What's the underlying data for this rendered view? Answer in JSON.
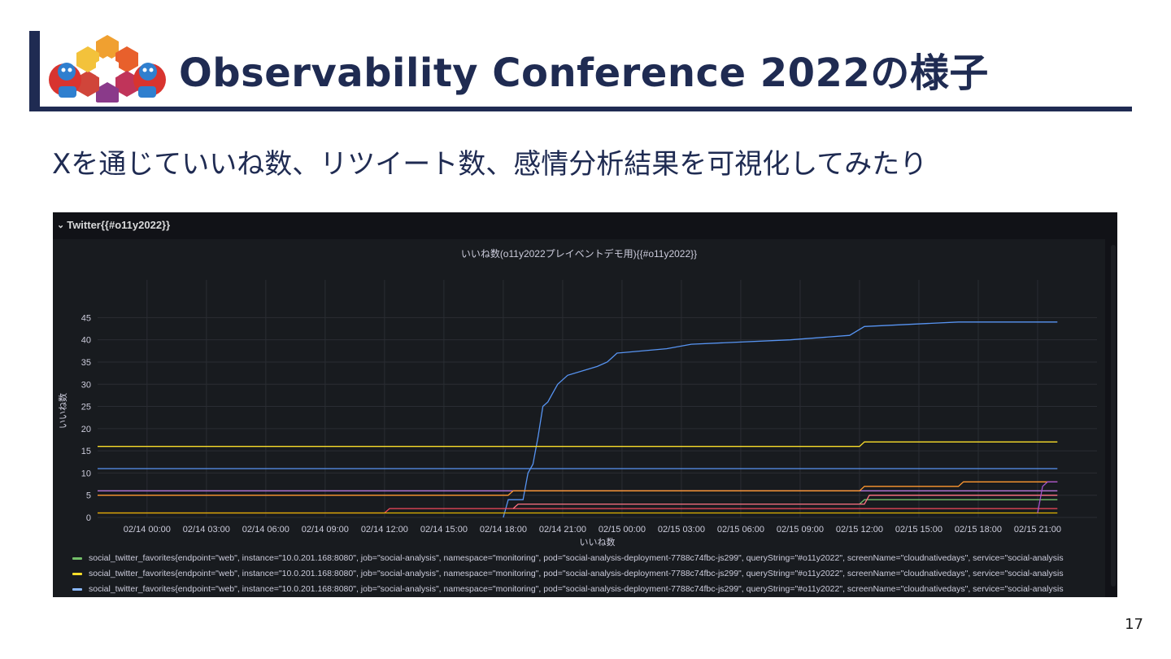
{
  "slide": {
    "title": "Observability Conference 2022の様子",
    "subtitle": "Xを通じていいね数、リツイート数、感情分析結果を可視化してみたり",
    "page_number": "17"
  },
  "dashboard": {
    "row_title": "Twitter{{#o11y2022}}",
    "panel_title": "いいね数(o11y2022プレイベントデモ用){{#o11y2022}}",
    "legend": [
      {
        "label": "social_twitter_favorites{endpoint=\"web\", instance=\"10.0.201.168:8080\", job=\"social-analysis\", namespace=\"monitoring\", pod=\"social-analysis-deployment-7788c74fbc-js299\", queryString=\"#o11y2022\", screenName=\"cloudnativedays\", service=\"social-analysis",
        "color": "#73bf69"
      },
      {
        "label": "social_twitter_favorites{endpoint=\"web\", instance=\"10.0.201.168:8080\", job=\"social-analysis\", namespace=\"monitoring\", pod=\"social-analysis-deployment-7788c74fbc-js299\", queryString=\"#o11y2022\", screenName=\"cloudnativedays\", service=\"social-analysis",
        "color": "#fade2a"
      },
      {
        "label": "social_twitter_favorites{endpoint=\"web\", instance=\"10.0.201.168:8080\", job=\"social-analysis\", namespace=\"monitoring\", pod=\"social-analysis-deployment-7788c74fbc-js299\", queryString=\"#o11y2022\", screenName=\"cloudnativedays\", service=\"social-analysis",
        "color": "#8ab8ff"
      }
    ]
  },
  "chart_data": {
    "type": "line",
    "title": "いいね数(o11y2022プレイベントデモ用){{#o11y2022}}",
    "xlabel": "いいね数",
    "ylabel": "いいね数",
    "ylim": [
      0,
      48
    ],
    "xlim": [
      "02/13 21:30",
      "02/16 00:00"
    ],
    "yticks": [
      0,
      5,
      10,
      15,
      20,
      25,
      30,
      35,
      40,
      45
    ],
    "xticks": [
      "02/14 00:00",
      "02/14 03:00",
      "02/14 06:00",
      "02/14 09:00",
      "02/14 12:00",
      "02/14 15:00",
      "02/14 18:00",
      "02/14 21:00",
      "02/15 00:00",
      "02/15 03:00",
      "02/15 06:00",
      "02/15 09:00",
      "02/15 12:00",
      "02/15 15:00",
      "02/15 18:00",
      "02/15 21:00"
    ],
    "grid": true,
    "series": [
      {
        "color": "#5794f2",
        "points": [
          [
            "02/14 18:00",
            0
          ],
          [
            "02/14 18:15",
            4
          ],
          [
            "02/14 19:00",
            4
          ],
          [
            "02/14 19:15",
            10
          ],
          [
            "02/14 19:30",
            12
          ],
          [
            "02/14 19:45",
            18
          ],
          [
            "02/14 20:00",
            25
          ],
          [
            "02/14 20:15",
            26
          ],
          [
            "02/14 20:30",
            28
          ],
          [
            "02/14 20:45",
            30
          ],
          [
            "02/14 21:00",
            31
          ],
          [
            "02/14 21:15",
            32
          ],
          [
            "02/14 22:45",
            34
          ],
          [
            "02/14 23:15",
            35
          ],
          [
            "02/14 23:30",
            36
          ],
          [
            "02/14 23:45",
            37
          ],
          [
            "02/15 02:15",
            38
          ],
          [
            "02/15 03:30",
            39
          ],
          [
            "02/15 08:30",
            40
          ],
          [
            "02/15 11:30",
            41
          ],
          [
            "02/15 12:15",
            43
          ],
          [
            "02/15 17:00",
            44
          ],
          [
            "02/15 22:00",
            44
          ]
        ]
      },
      {
        "color": "#fade2a",
        "points": [
          [
            "02/13 21:30",
            16
          ],
          [
            "02/15 12:00",
            16
          ],
          [
            "02/15 12:15",
            17
          ],
          [
            "02/15 22:00",
            17
          ]
        ]
      },
      {
        "color": "#5794f2",
        "points": [
          [
            "02/13 21:30",
            11
          ],
          [
            "02/15 22:00",
            11
          ]
        ]
      },
      {
        "color": "#b877d9",
        "points": [
          [
            "02/13 21:30",
            6
          ],
          [
            "02/15 22:00",
            6
          ]
        ]
      },
      {
        "color": "#ff9830",
        "points": [
          [
            "02/13 21:30",
            5
          ],
          [
            "02/14 18:15",
            5
          ],
          [
            "02/14 18:30",
            6
          ],
          [
            "02/15 12:00",
            6
          ],
          [
            "02/15 12:15",
            7
          ],
          [
            "02/15 17:00",
            7
          ],
          [
            "02/15 17:15",
            8
          ],
          [
            "02/15 22:00",
            8
          ]
        ]
      },
      {
        "color": "#f2495c",
        "points": [
          [
            "02/13 21:30",
            1
          ],
          [
            "02/14 12:00",
            1
          ],
          [
            "02/14 12:15",
            2
          ],
          [
            "02/15 22:00",
            2
          ]
        ]
      },
      {
        "color": "#73bf69",
        "points": [
          [
            "02/15 12:00",
            3
          ],
          [
            "02/15 12:15",
            4
          ],
          [
            "02/15 22:00",
            4
          ]
        ]
      },
      {
        "color": "#e0b400",
        "points": [
          [
            "02/13 21:30",
            1
          ],
          [
            "02/15 22:00",
            1
          ]
        ]
      },
      {
        "color": "#ff7383",
        "points": [
          [
            "02/14 18:30",
            2
          ],
          [
            "02/14 18:45",
            3
          ],
          [
            "02/15 12:15",
            3
          ],
          [
            "02/15 12:30",
            5
          ],
          [
            "02/15 22:00",
            5
          ]
        ]
      },
      {
        "color": "#a352cc",
        "points": [
          [
            "02/15 21:00",
            1
          ],
          [
            "02/15 21:15",
            7
          ],
          [
            "02/15 21:30",
            8
          ],
          [
            "02/15 22:00",
            8
          ]
        ]
      }
    ]
  }
}
